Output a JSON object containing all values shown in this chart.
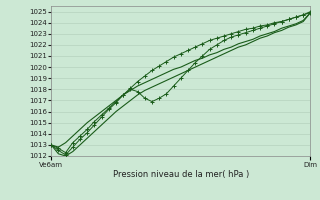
{
  "title": "Pression niveau de la mer( hPa )",
  "xlabels": [
    "Ve6am",
    "Dim"
  ],
  "ylim": [
    1012,
    1025.5
  ],
  "yticks": [
    1012,
    1013,
    1014,
    1015,
    1016,
    1017,
    1018,
    1019,
    1020,
    1021,
    1022,
    1023,
    1024,
    1025
  ],
  "bg_color": "#cce8d4",
  "grid_color": "#b0ccb8",
  "line_color": "#1a5c1a",
  "n_points": 37,
  "line1_y": [
    1013.0,
    1012.7,
    1012.3,
    1013.2,
    1013.8,
    1014.4,
    1015.1,
    1015.7,
    1016.3,
    1016.9,
    1017.5,
    1018.0,
    1017.8,
    1017.2,
    1016.9,
    1017.2,
    1017.6,
    1018.3,
    1019.0,
    1019.7,
    1020.4,
    1021.0,
    1021.6,
    1022.0,
    1022.4,
    1022.7,
    1022.9,
    1023.1,
    1023.3,
    1023.5,
    1023.7,
    1023.9,
    1024.1,
    1024.3,
    1024.5,
    1024.7,
    1025.0
  ],
  "line2_y": [
    1013.0,
    1012.5,
    1012.1,
    1012.8,
    1013.5,
    1014.1,
    1014.8,
    1015.5,
    1016.2,
    1016.8,
    1017.5,
    1018.1,
    1018.7,
    1019.2,
    1019.7,
    1020.1,
    1020.5,
    1020.9,
    1021.2,
    1021.5,
    1021.8,
    1022.1,
    1022.4,
    1022.6,
    1022.8,
    1023.0,
    1023.2,
    1023.4,
    1023.5,
    1023.7,
    1023.8,
    1024.0,
    1024.1,
    1024.3,
    1024.5,
    1024.7,
    1024.9
  ],
  "line3_y": [
    1013.0,
    1012.2,
    1012.0,
    1012.4,
    1013.0,
    1013.6,
    1014.2,
    1014.8,
    1015.4,
    1016.0,
    1016.5,
    1017.0,
    1017.5,
    1017.9,
    1018.2,
    1018.5,
    1018.8,
    1019.1,
    1019.4,
    1019.7,
    1020.0,
    1020.3,
    1020.6,
    1020.9,
    1021.2,
    1021.5,
    1021.8,
    1022.0,
    1022.3,
    1022.6,
    1022.8,
    1023.1,
    1023.3,
    1023.6,
    1023.8,
    1024.1,
    1024.9
  ],
  "line4_y": [
    1013.0,
    1012.8,
    1013.2,
    1013.8,
    1014.4,
    1015.0,
    1015.5,
    1016.0,
    1016.5,
    1017.0,
    1017.5,
    1017.9,
    1018.3,
    1018.6,
    1018.9,
    1019.2,
    1019.5,
    1019.8,
    1020.0,
    1020.3,
    1020.6,
    1020.8,
    1021.1,
    1021.3,
    1021.6,
    1021.8,
    1022.1,
    1022.3,
    1022.5,
    1022.8,
    1023.0,
    1023.2,
    1023.5,
    1023.7,
    1023.9,
    1024.2,
    1024.9
  ]
}
